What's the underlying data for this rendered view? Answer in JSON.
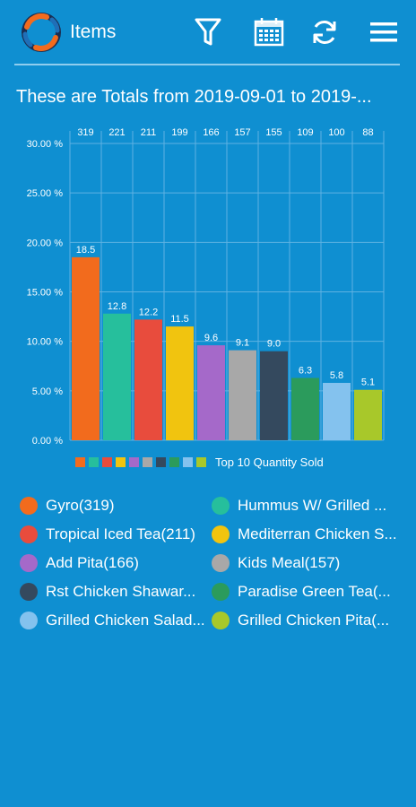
{
  "app_bar": {
    "title": "Items",
    "logo_icon": "app-logo-icon",
    "actions": [
      {
        "name": "filter-button",
        "icon": "filter-icon"
      },
      {
        "name": "calendar-button",
        "icon": "calendar-icon"
      },
      {
        "name": "refresh-button",
        "icon": "refresh-icon"
      },
      {
        "name": "menu-button",
        "icon": "menu-icon"
      }
    ]
  },
  "report": {
    "heading": "These are Totals from 2019-09-01 to 2019-..."
  },
  "chart_data": {
    "type": "bar",
    "categories": [
      "Gyro",
      "Hummus W/ Grilled ...",
      "Tropical Iced Tea",
      "Mediterran Chicken S...",
      "Add Pita",
      "Kids Meal",
      "Rst Chicken Shawar...",
      "Paradise Green Tea(...",
      "Grilled Chicken Salad...",
      "Grilled Chicken Pita(..."
    ],
    "series": [
      {
        "name": "Top 10 Quantity Sold",
        "values": [
          18.5,
          12.8,
          12.2,
          11.5,
          9.6,
          9.1,
          9.0,
          6.3,
          5.8,
          5.1
        ]
      }
    ],
    "top_labels": [
      "319",
      "221",
      "211",
      "199",
      "166",
      "157",
      "155",
      "109",
      "100",
      "88"
    ],
    "value_labels": [
      "18.5",
      "12.8",
      "12.2",
      "11.5",
      "9.6",
      "9.1",
      "9.0",
      "6.3",
      "5.8",
      "5.1"
    ],
    "y_ticks": [
      "0.00 %",
      "5.00 %",
      "10.00 %",
      "15.00 %",
      "20.00 %",
      "25.00 %",
      "30.00 %"
    ],
    "ylim": [
      0,
      30
    ],
    "grid": true,
    "legend_position": "bottom",
    "colors": [
      "#f26b1d",
      "#26bf9c",
      "#e84c3d",
      "#f1c40f",
      "#a569c9",
      "#a8a8a8",
      "#34495e",
      "#2b9b5c",
      "#84c2ee",
      "#a8c82a"
    ]
  },
  "legend_items": [
    {
      "label": "Gyro(319)",
      "color": "#f26b1d"
    },
    {
      "label": "Hummus W/ Grilled ...",
      "color": "#26bf9c"
    },
    {
      "label": "Tropical Iced Tea(211)",
      "color": "#e84c3d"
    },
    {
      "label": "Mediterran Chicken S...",
      "color": "#f1c40f"
    },
    {
      "label": "Add Pita(166)",
      "color": "#a569c9"
    },
    {
      "label": "Kids Meal(157)",
      "color": "#a8a8a8"
    },
    {
      "label": "Rst Chicken Shawar...",
      "color": "#34495e"
    },
    {
      "label": "Paradise Green Tea(...",
      "color": "#2b9b5c"
    },
    {
      "label": "Grilled Chicken Salad...",
      "color": "#84c2ee"
    },
    {
      "label": "Grilled Chicken Pita(...",
      "color": "#a8c82a"
    }
  ]
}
